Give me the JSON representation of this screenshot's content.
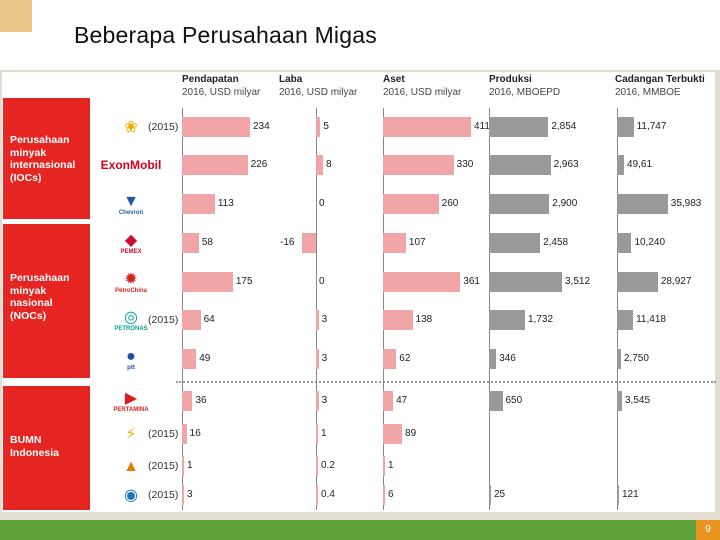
{
  "slide": {
    "title": "Beberapa Perusahaan Migas",
    "page_number": "9"
  },
  "groups": [
    {
      "lines": [
        "Perusahaan",
        "minyak",
        "internasional",
        "(IOCs)"
      ]
    },
    {
      "lines": [
        "Perusahaan",
        "minyak",
        "nasional",
        "(NOCs)"
      ]
    },
    {
      "lines": [
        "BUMN",
        "Indonesia"
      ]
    }
  ],
  "chart_data": {
    "type": "bar",
    "columns": [
      {
        "key": "pendapatan",
        "title": "Pendapatan",
        "subtitle": "2016, USD milyar",
        "color": "#f2a5a7"
      },
      {
        "key": "laba",
        "title": "Laba",
        "subtitle": "2016, USD milyar",
        "color": "#f2a5a7"
      },
      {
        "key": "aset",
        "title": "Aset",
        "subtitle": "2016, USD milyar",
        "color": "#f2a5a7"
      },
      {
        "key": "produksi",
        "title": "Produksi",
        "subtitle": "2016, MBOEPD",
        "color": "#9a9a9a"
      },
      {
        "key": "cadangan",
        "title": "Cadangan Terbukti",
        "subtitle": "2016, MMBOE",
        "color": "#9a9a9a"
      }
    ],
    "companies": [
      {
        "name": "Shell",
        "logo_text": "",
        "logo_icon": "shell-shell-icon",
        "year_note": "(2015)",
        "pendapatan": "234",
        "laba": "5",
        "aset": "411",
        "produksi": "2,854",
        "cadangan": "11,747"
      },
      {
        "name": "ExxonMobil",
        "logo_text": "ExonMobil",
        "logo_icon": "exxonmobil-wordmark",
        "year_note": "",
        "pendapatan": "226",
        "laba": "8",
        "aset": "330",
        "produksi": "2,963",
        "cadangan": "49,61"
      },
      {
        "name": "Chevron",
        "logo_text": "Chevron",
        "logo_icon": "chevron-chevron-icon",
        "year_note": "",
        "pendapatan": "113",
        "laba": "0",
        "aset": "260",
        "produksi": "2,900",
        "cadangan": "35,983"
      },
      {
        "name": "Pemex",
        "logo_text": "PEMEX",
        "logo_icon": "pemex-eagle-icon",
        "year_note": "",
        "pendapatan": "58",
        "laba": "-16",
        "aset": "107",
        "produksi": "2,458",
        "cadangan": "10,240"
      },
      {
        "name": "PetroChina",
        "logo_text": "PetroChina",
        "logo_icon": "petrochina-sun-icon",
        "year_note": "",
        "pendapatan": "175",
        "laba": "0",
        "aset": "361",
        "produksi": "3,512",
        "cadangan": "28,927"
      },
      {
        "name": "Petronas",
        "logo_text": "PETRONAS",
        "logo_icon": "petronas-towers-icon",
        "year_note": "(2015)",
        "pendapatan": "64",
        "laba": "3",
        "aset": "138",
        "produksi": "1,732",
        "cadangan": "11,418"
      },
      {
        "name": "PTT",
        "logo_text": "ptt",
        "logo_icon": "ptt-flame-icon",
        "year_note": "",
        "pendapatan": "49",
        "laba": "3",
        "aset": "62",
        "produksi": "346",
        "cadangan": "2,750"
      },
      {
        "name": "Pertamina",
        "logo_text": "PERTAMINA",
        "logo_icon": "pertamina-arrows-icon",
        "year_note": "",
        "pendapatan": "36",
        "laba": "3",
        "aset": "47",
        "produksi": "650",
        "cadangan": "3,545"
      },
      {
        "name": "PLN",
        "logo_text": "",
        "logo_icon": "pln-lightning-icon",
        "year_note": "(2015)",
        "pendapatan": "16",
        "laba": "1",
        "aset": "89",
        "produksi": "",
        "cadangan": ""
      },
      {
        "name": "Rekind",
        "logo_text": "",
        "logo_icon": "rekind-flame-icon",
        "year_note": "(2015)",
        "pendapatan": "1",
        "laba": "0.2",
        "aset": "1",
        "produksi": "",
        "cadangan": ""
      },
      {
        "name": "PGN",
        "logo_text": "",
        "logo_icon": "pgn-flame-icon",
        "year_note": "(2015)",
        "pendapatan": "3",
        "laba": "0.4",
        "aset": "6",
        "produksi": "25",
        "cadangan": "121"
      }
    ]
  }
}
